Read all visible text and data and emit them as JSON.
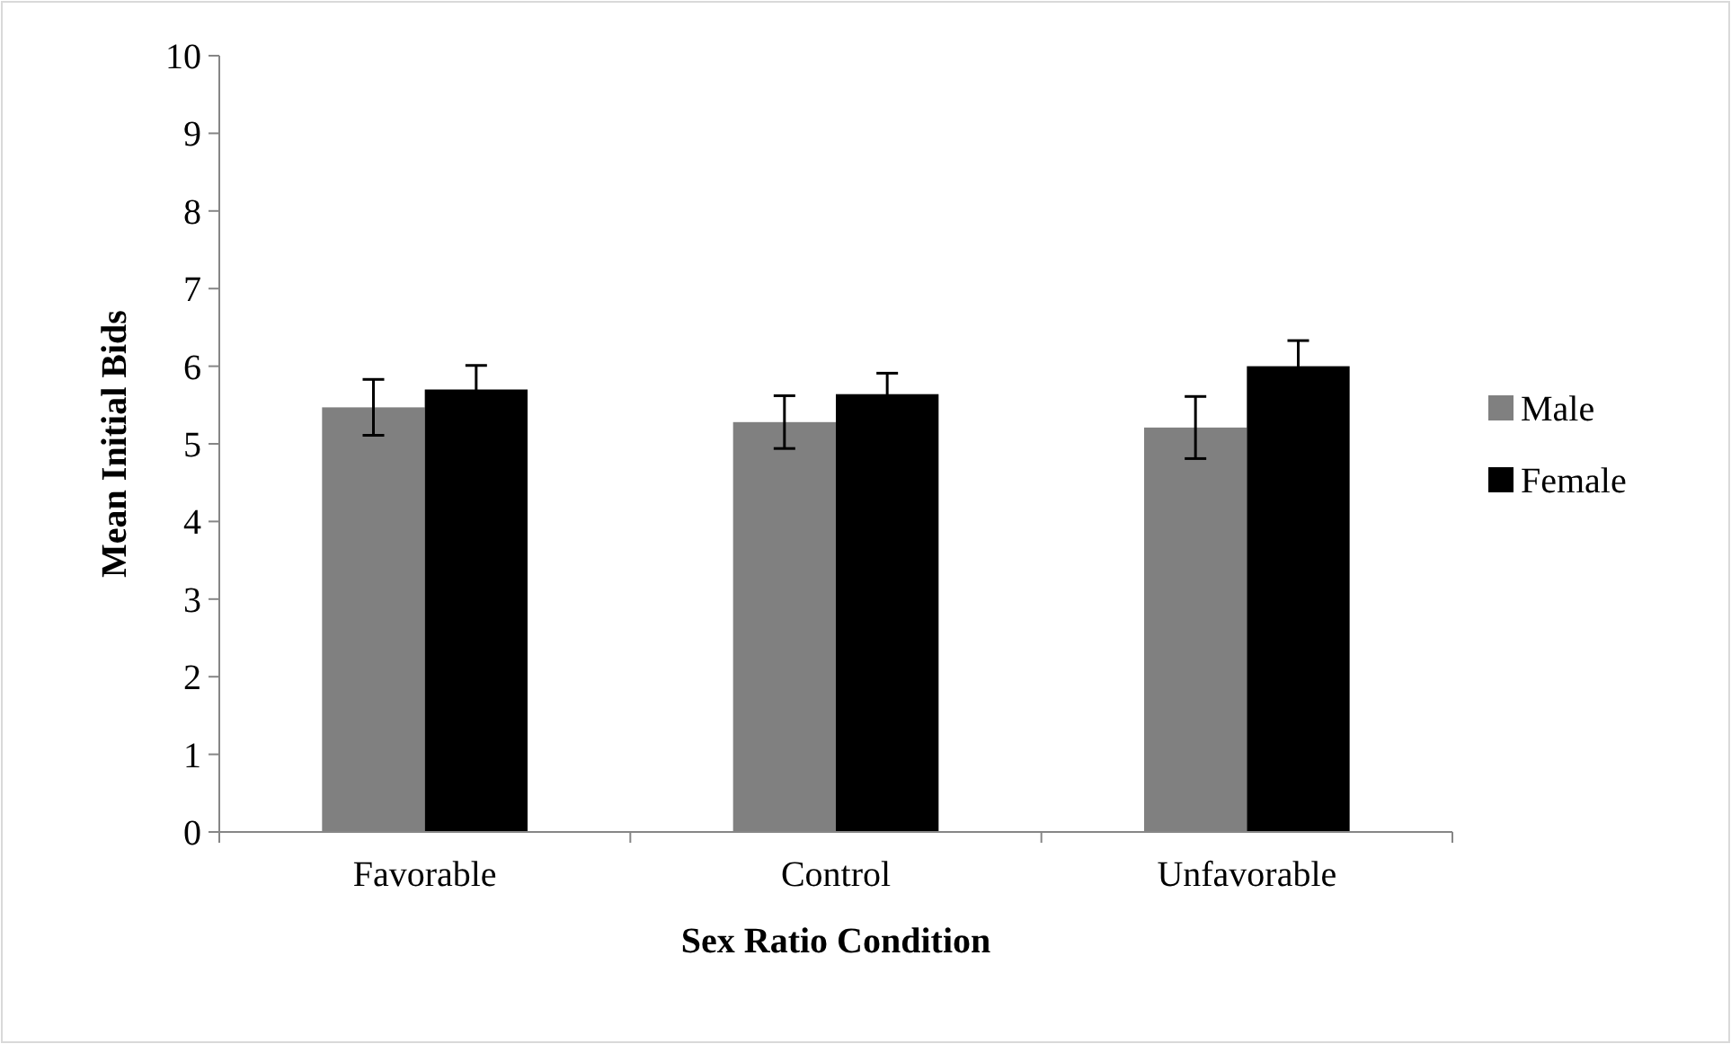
{
  "chart_data": {
    "type": "bar",
    "xlabel": "Sex Ratio Condition",
    "ylabel": "Mean Initial Bids",
    "categories": [
      "Favorable",
      "Control",
      "Unfavorable"
    ],
    "series": [
      {
        "name": "Male",
        "color": "#808080",
        "values": [
          5.47,
          5.28,
          5.21
        ],
        "errors": [
          0.36,
          0.34,
          0.4
        ]
      },
      {
        "name": "Female",
        "color": "#000000",
        "values": [
          5.7,
          5.64,
          6.0
        ],
        "errors": [
          0.31,
          0.27,
          0.33
        ]
      }
    ],
    "ylim": [
      0,
      10
    ],
    "yticks": [
      0,
      1,
      2,
      3,
      4,
      5,
      6,
      7,
      8,
      9,
      10
    ],
    "grid": false,
    "legend": "right"
  }
}
